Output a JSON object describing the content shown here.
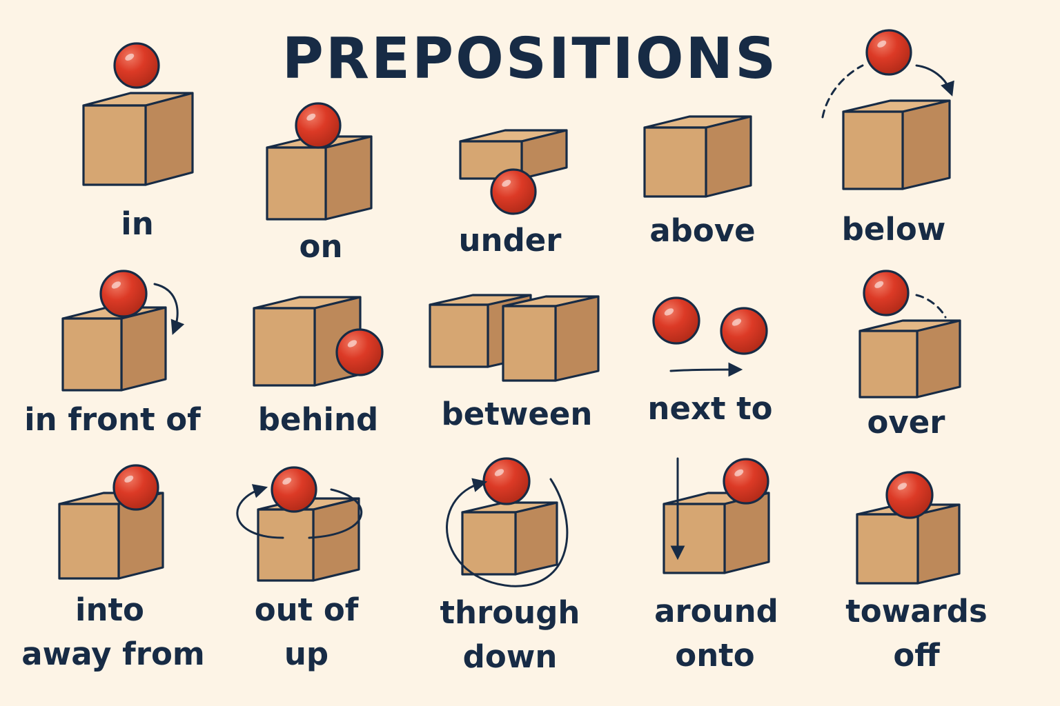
{
  "title": "PREPOSITIONS",
  "colors": {
    "background": "#fdf4e6",
    "box_front": "#d6a672",
    "box_top": "#e4b886",
    "box_side": "#bd895a",
    "ball": "#dc3a26",
    "ball_highlight": "#f07a64",
    "ink": "#172b45"
  },
  "labels": {
    "in": "in",
    "on": "on",
    "under": "under",
    "above": "above",
    "below": "below",
    "in_front_of": "in front of",
    "behind": "behind",
    "between": "between",
    "next_to": "next to",
    "over": "over",
    "into": "into",
    "away_from": "away from",
    "out_of": "out of",
    "up": "up",
    "through": "through",
    "down": "down",
    "around": "around",
    "onto": "onto",
    "towards": "towards",
    "off": "off"
  }
}
